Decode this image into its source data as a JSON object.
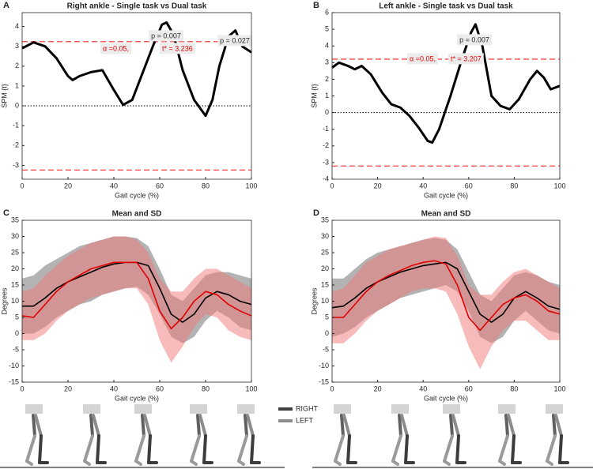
{
  "chart_data": [
    {
      "type": "line",
      "label": "A",
      "title": "Right ankle - Single task vs Dual task",
      "xlabel": "Gait cycle (%)",
      "ylabel": "SPM {t}",
      "x": [
        0,
        5,
        10,
        15,
        20,
        22,
        25,
        30,
        35,
        40,
        44,
        48,
        52,
        57,
        61,
        63,
        66,
        70,
        75,
        80,
        83,
        86,
        90,
        93,
        96,
        100
      ],
      "values": [
        2.9,
        3.2,
        3.0,
        2.4,
        1.5,
        1.3,
        1.5,
        1.7,
        1.8,
        0.8,
        0.05,
        0.3,
        1.5,
        3.0,
        4.1,
        4.2,
        3.6,
        1.8,
        0.3,
        -0.5,
        0.3,
        2.0,
        3.5,
        3.8,
        3.0,
        2.7
      ],
      "color": "#000000",
      "thresholds": [
        3.236,
        -3.236
      ],
      "threshold_color": "#ff4040",
      "annotations": [
        "p = 0.007",
        "p = 0.027",
        "α =0.05,",
        "t* = 3.236"
      ],
      "xlim": [
        0,
        100
      ],
      "xticks": [
        0,
        20,
        40,
        60,
        80,
        100
      ],
      "ylim": [
        -3.7,
        4.7
      ],
      "yticks": [
        -3,
        -2,
        -1,
        0,
        1,
        2,
        3,
        4
      ]
    },
    {
      "type": "line",
      "label": "B",
      "title": "Left ankle - Single task vs Dual task",
      "xlabel": "Gait cycle (%)",
      "ylabel": "SPM {t}",
      "x": [
        0,
        3,
        7,
        10,
        13,
        17,
        22,
        26,
        30,
        34,
        38,
        42,
        44,
        47,
        52,
        57,
        61,
        63,
        66,
        70,
        74,
        78,
        82,
        87,
        90,
        93,
        96,
        100
      ],
      "values": [
        2.7,
        3.0,
        2.8,
        2.6,
        2.8,
        2.3,
        1.2,
        0.5,
        0.3,
        -0.2,
        -0.9,
        -1.7,
        -1.8,
        -1.0,
        1.0,
        3.2,
        4.8,
        5.3,
        4.0,
        1.0,
        0.4,
        0.2,
        0.8,
        2.0,
        2.5,
        2.1,
        1.4,
        1.6
      ],
      "color": "#000000",
      "thresholds": [
        3.207,
        -3.207
      ],
      "threshold_color": "#ff4040",
      "annotations": [
        "p = 0.007",
        "α =0.05,",
        "t* = 3.207"
      ],
      "xlim": [
        0,
        100
      ],
      "xticks": [
        0,
        20,
        40,
        60,
        80,
        100
      ],
      "ylim": [
        -4,
        6
      ],
      "yticks": [
        -4,
        -3,
        -2,
        -1,
        0,
        1,
        2,
        3,
        4,
        5,
        6
      ]
    },
    {
      "type": "band",
      "label": "C",
      "title": "Mean and SD",
      "xlabel": "Gait cycle (%)",
      "ylabel": "Degrees",
      "x": [
        0,
        5,
        10,
        15,
        20,
        25,
        30,
        35,
        40,
        45,
        50,
        55,
        60,
        65,
        70,
        75,
        80,
        85,
        90,
        95,
        100
      ],
      "series": [
        {
          "color": "#000000",
          "band_color": "#a6a6a6",
          "values": [
            8.5,
            8.5,
            11,
            14,
            16,
            17.5,
            19,
            20.5,
            21.5,
            22,
            22,
            21,
            14,
            6,
            3.5,
            6,
            11,
            13,
            12,
            10,
            9
          ],
          "upper": [
            17,
            18,
            21,
            23,
            25,
            27,
            28,
            29,
            30,
            30,
            29.5,
            27,
            20,
            12,
            10,
            14,
            18,
            19,
            19,
            18,
            17
          ],
          "lower": [
            0,
            0,
            2,
            5,
            7,
            9,
            10,
            12,
            13,
            14,
            14.5,
            12,
            6,
            -1,
            -3,
            -1,
            4,
            7,
            5,
            2,
            1
          ]
        },
        {
          "color": "#e00000",
          "band_color": "#f07878",
          "values": [
            5.5,
            5,
            9,
            13,
            16,
            18,
            20,
            21,
            22,
            22,
            22,
            17,
            7,
            1.5,
            5,
            10,
            13,
            12,
            9,
            7,
            5.5
          ],
          "upper": [
            13,
            14,
            18,
            21,
            24,
            26,
            28,
            29,
            30,
            30,
            29,
            25,
            17,
            13,
            13,
            17,
            20,
            20,
            18,
            16,
            14
          ],
          "lower": [
            -2,
            -2,
            0,
            4,
            7,
            9,
            11,
            12,
            13,
            14,
            14,
            9,
            -2,
            -9,
            -4,
            2,
            6,
            5,
            1,
            -1,
            -2
          ]
        }
      ],
      "xlim": [
        0,
        100
      ],
      "xticks": [
        0,
        20,
        40,
        60,
        80,
        100
      ],
      "ylim": [
        -15,
        35
      ],
      "yticks": [
        -15,
        -10,
        -5,
        0,
        5,
        10,
        15,
        20,
        25,
        30,
        35
      ]
    },
    {
      "type": "band",
      "label": "D",
      "title": "Mean and SD",
      "xlabel": "Gait cycle (%)",
      "ylabel": "Degrees",
      "x": [
        0,
        5,
        10,
        15,
        20,
        25,
        30,
        35,
        40,
        45,
        50,
        55,
        60,
        65,
        70,
        75,
        80,
        85,
        90,
        95,
        100
      ],
      "series": [
        {
          "color": "#000000",
          "band_color": "#a6a6a6",
          "values": [
            8,
            8.5,
            11,
            14,
            16,
            17.5,
            19,
            20,
            21,
            21.5,
            22,
            20,
            13,
            6,
            3.5,
            6,
            11,
            13,
            11,
            8.5,
            7.5
          ],
          "upper": [
            17,
            17,
            20,
            23,
            25,
            26,
            27,
            28,
            29,
            29.5,
            29,
            26,
            19,
            12,
            10,
            14,
            18,
            19,
            18,
            16,
            15
          ],
          "lower": [
            -1,
            0,
            2,
            5,
            7,
            9,
            11,
            12,
            13,
            14,
            15,
            13,
            7,
            -1,
            -3,
            -1,
            4,
            7,
            4,
            1,
            0
          ]
        },
        {
          "color": "#e00000",
          "band_color": "#f07878",
          "values": [
            5,
            5,
            9,
            13,
            16,
            18,
            19.5,
            21,
            22,
            22.5,
            21.5,
            15,
            5,
            1,
            5,
            9,
            11,
            12,
            10,
            7,
            6
          ],
          "upper": [
            13,
            14,
            18,
            22,
            24,
            26,
            27,
            28,
            29,
            30,
            29.5,
            24,
            15,
            12,
            12,
            16,
            19,
            20,
            18,
            16,
            14
          ],
          "lower": [
            -3,
            -3,
            0,
            4,
            7,
            9,
            11,
            13,
            14,
            14,
            13,
            6,
            -4,
            -11,
            -4,
            1,
            4,
            4,
            1,
            -2,
            -2
          ]
        }
      ],
      "xlim": [
        0,
        100
      ],
      "xticks": [
        0,
        20,
        40,
        60,
        80,
        100
      ],
      "ylim": [
        -15,
        35
      ],
      "yticks": [
        -15,
        -10,
        -5,
        0,
        5,
        10,
        15,
        20,
        25,
        30,
        35
      ]
    }
  ],
  "figure_legend": [
    "RIGHT",
    "LEFT"
  ]
}
